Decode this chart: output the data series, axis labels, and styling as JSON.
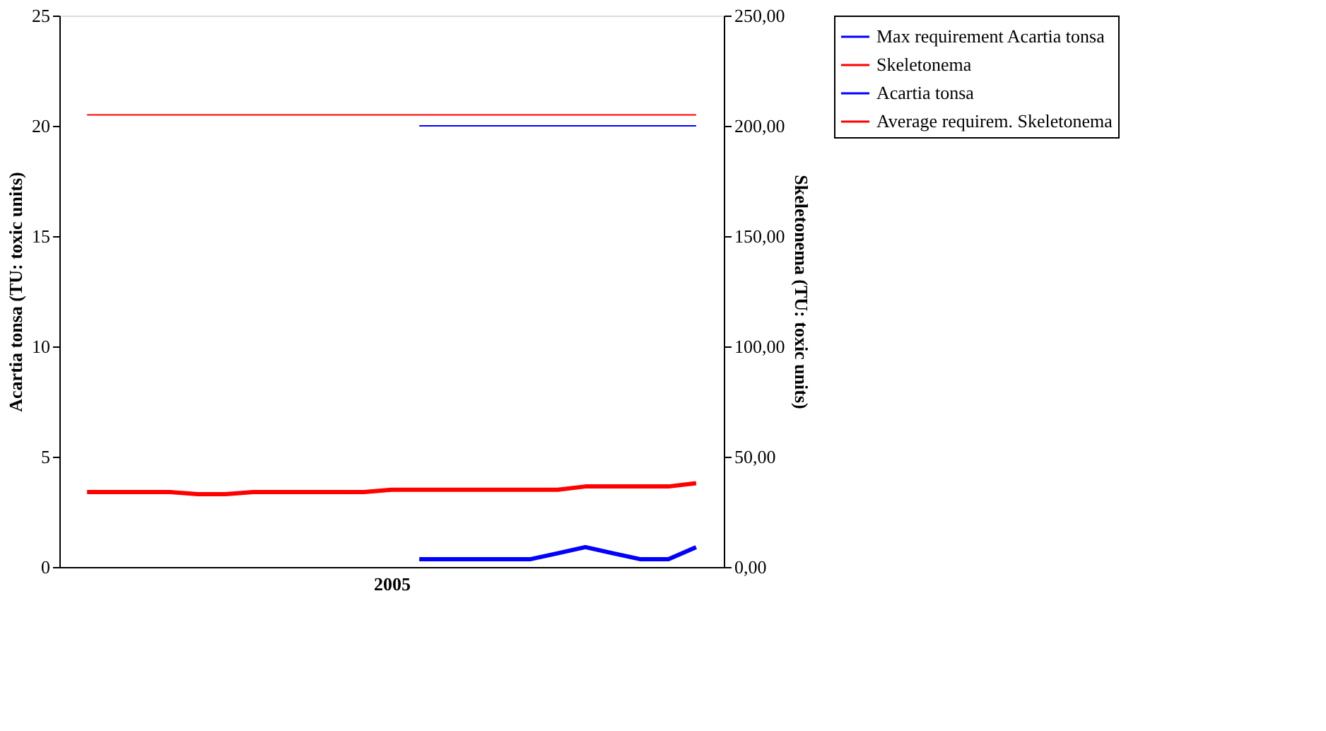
{
  "chart_data": {
    "type": "line",
    "xlabel": "2005",
    "ylabel": "Acartia tonsa (TU: toxic units)",
    "y2label": "Skeletonema (TU: toxic units)",
    "categories": [
      null,
      null,
      null,
      null,
      null,
      null,
      null,
      null,
      null,
      null,
      null,
      null,
      null,
      null,
      null,
      null,
      null,
      null,
      null,
      null,
      null,
      null,
      null
    ],
    "series": [
      {
        "name": "Max requirement Acartia tonsa",
        "color": "#0000ff",
        "values": [
          null,
          null,
          null,
          null,
          null,
          null,
          null,
          null,
          null,
          null,
          null,
          null,
          20,
          20,
          20,
          20,
          20,
          20,
          20,
          20,
          20,
          20,
          20
        ]
      },
      {
        "name": "Skeletonema",
        "color": "#ff0000",
        "axis": "y2",
        "values": [
          34,
          34,
          34,
          34,
          33,
          33,
          34,
          34,
          34,
          34,
          34,
          35,
          35,
          35,
          35,
          35,
          35,
          35,
          36.5,
          36.5,
          36.5,
          36.5,
          38
        ]
      },
      {
        "name": "Acartia tonsa",
        "color": "#0000ff",
        "values": [
          null,
          null,
          null,
          null,
          null,
          null,
          null,
          null,
          null,
          null,
          null,
          null,
          0.35,
          0.35,
          0.35,
          0.35,
          0.35,
          0.62,
          0.9,
          0.62,
          0.35,
          0.35,
          0.9
        ]
      },
      {
        "name": "Average requirem. Skeletonema",
        "color": "#ff0000",
        "axis": "y2",
        "values": [
          205,
          205,
          205,
          205,
          205,
          205,
          205,
          205,
          205,
          205,
          205,
          205,
          205,
          205,
          205,
          205,
          205,
          205,
          205,
          205,
          205,
          205,
          205
        ]
      }
    ],
    "ylim": [
      0,
      25
    ],
    "yticks": [
      0,
      5,
      10,
      15,
      20,
      25
    ],
    "y2lim": [
      0,
      250
    ],
    "y2ticks": [
      {
        "value": 0,
        "label": "0,00"
      },
      {
        "value": 50,
        "label": "50,00"
      },
      {
        "value": 100,
        "label": "100,00"
      },
      {
        "value": 150,
        "label": "150,00"
      },
      {
        "value": 200,
        "label": "200,00"
      },
      {
        "value": 250,
        "label": "250,00"
      }
    ],
    "legend": "right",
    "grid": false,
    "marker": "none",
    "line_style": "solid"
  }
}
